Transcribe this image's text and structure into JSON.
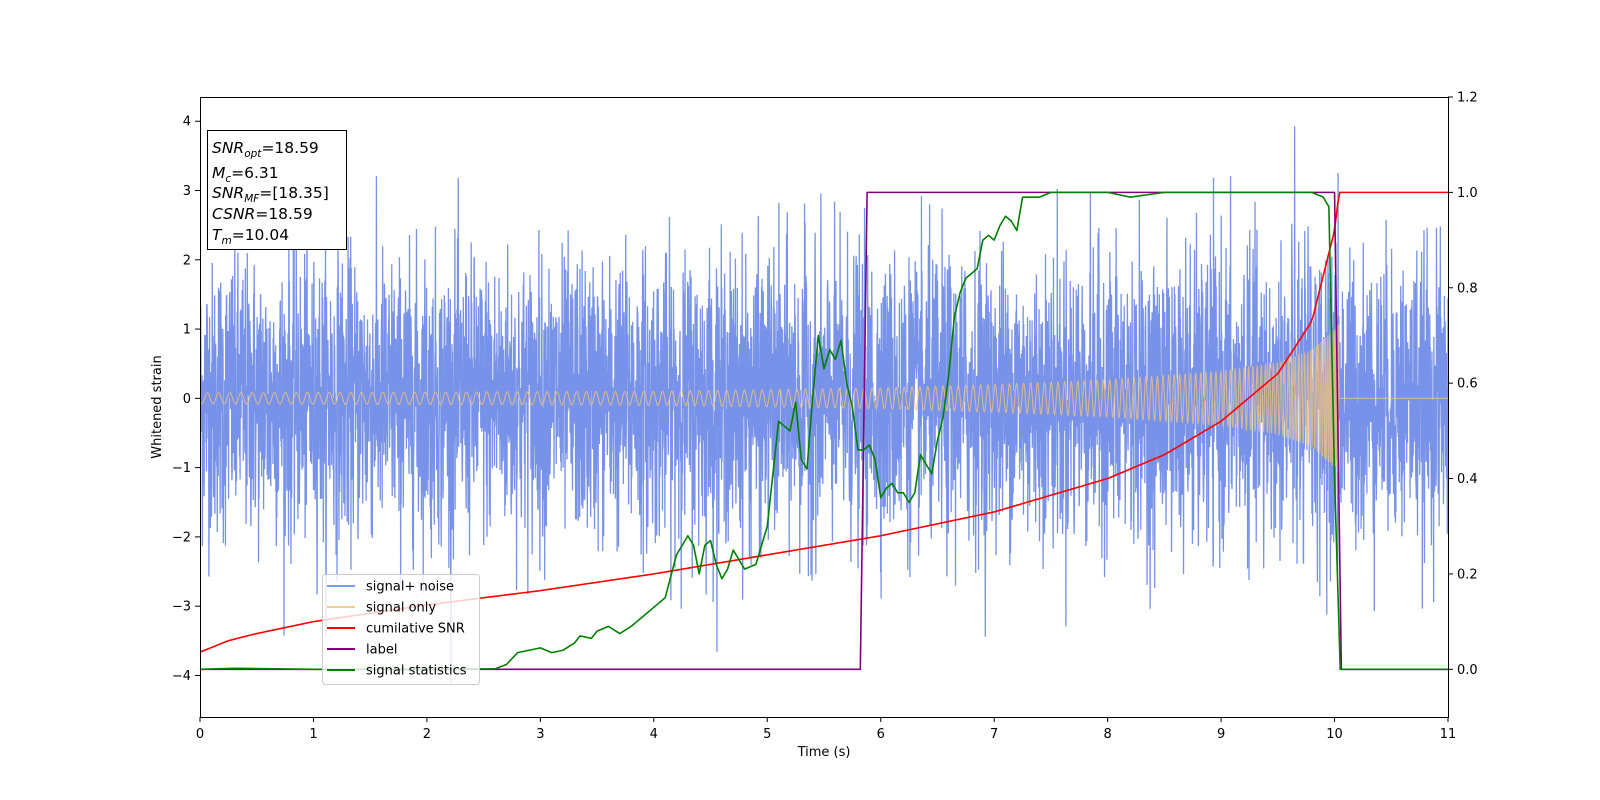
{
  "chart_data": {
    "type": "line",
    "xlabel": "Time (s)",
    "ylabel": "Whitened strain",
    "xlim": [
      0,
      11
    ],
    "ylim": [
      -4.6,
      4.35
    ],
    "y2lim": [
      -0.1,
      1.2
    ],
    "xticks": [
      "0",
      "1",
      "2",
      "3",
      "4",
      "5",
      "6",
      "7",
      "8",
      "9",
      "10",
      "11"
    ],
    "yticks": [
      "4",
      "3",
      "2",
      "1",
      "0",
      "−1",
      "−2",
      "−3",
      "−4"
    ],
    "y2ticks": [
      "1.2",
      "1.0",
      "0.8",
      "0.6",
      "0.4",
      "0.2",
      "0.0"
    ],
    "grid": false,
    "legend_position": "lower-left",
    "annotation": [
      {
        "base": "SNR",
        "sub": "opt",
        "value": "=18.59"
      },
      {
        "base": "M",
        "sub": "c",
        "value": "=6.31"
      },
      {
        "base": "SNR",
        "sub": "MF",
        "value": "=[18.35]"
      },
      {
        "base": "CSNR",
        "sub": "",
        "value": "=18.59"
      },
      {
        "base": "T",
        "sub": "m",
        "value": "=10.04"
      }
    ],
    "series": [
      {
        "name": "signal+ noise",
        "axis": "left",
        "color": "#6b89e6",
        "description": "Gaussian white noise (std ~1, peaks ~3.9) plus chirp signal, 0 to 11 s"
      },
      {
        "name": "signal only",
        "axis": "left",
        "color": "#f5c37a",
        "envelope": {
          "x": [
            0,
            2,
            4,
            6,
            7,
            8,
            9,
            9.5,
            9.8,
            10.0,
            10.04
          ],
          "amplitude": [
            0.08,
            0.09,
            0.1,
            0.15,
            0.2,
            0.27,
            0.39,
            0.52,
            0.7,
            1.0,
            1.1
          ]
        },
        "zero_after": 10.04
      },
      {
        "name": "cumilative SNR",
        "axis": "right",
        "color": "#ff0000",
        "x": [
          0,
          0.25,
          0.5,
          1,
          2,
          3,
          4,
          5,
          6,
          7,
          8,
          8.5,
          9,
          9.5,
          9.8,
          10.0,
          10.04,
          10.1,
          11
        ],
        "y": [
          0.036,
          0.06,
          0.075,
          0.1,
          0.135,
          0.165,
          0.2,
          0.24,
          0.28,
          0.33,
          0.4,
          0.45,
          0.52,
          0.62,
          0.73,
          0.92,
          1.0,
          1.0,
          1.0
        ]
      },
      {
        "name": "label",
        "axis": "right",
        "color": "#800080",
        "x": [
          0,
          5.82,
          5.88,
          10.0,
          10.06,
          11
        ],
        "y": [
          0,
          0,
          1,
          1,
          0,
          0
        ]
      },
      {
        "name": "signal statistics",
        "axis": "right",
        "color": "#008000",
        "x": [
          0,
          0.3,
          1,
          2,
          2.6,
          2.7,
          2.8,
          2.9,
          3.0,
          3.1,
          3.2,
          3.3,
          3.35,
          3.45,
          3.5,
          3.55,
          3.6,
          3.7,
          3.8,
          3.9,
          4.0,
          4.1,
          4.2,
          4.3,
          4.35,
          4.4,
          4.45,
          4.5,
          4.55,
          4.6,
          4.65,
          4.7,
          4.8,
          4.9,
          5.0,
          5.1,
          5.2,
          5.25,
          5.3,
          5.35,
          5.4,
          5.45,
          5.5,
          5.55,
          5.6,
          5.65,
          5.7,
          5.75,
          5.8,
          5.85,
          5.9,
          5.95,
          6.0,
          6.05,
          6.1,
          6.15,
          6.2,
          6.25,
          6.3,
          6.35,
          6.4,
          6.45,
          6.5,
          6.55,
          6.6,
          6.65,
          6.7,
          6.75,
          6.8,
          6.85,
          6.9,
          6.95,
          7.0,
          7.05,
          7.1,
          7.15,
          7.2,
          7.25,
          7.3,
          7.4,
          7.5,
          7.6,
          7.8,
          8.0,
          8.2,
          8.5,
          8.8,
          9.0,
          9.5,
          9.8,
          9.9,
          9.95,
          10.0,
          10.05,
          10.1,
          10.5,
          11
        ],
        "y": [
          0.0,
          0.002,
          0.0,
          0.0,
          0.001,
          0.01,
          0.035,
          0.04,
          0.045,
          0.035,
          0.04,
          0.055,
          0.07,
          0.065,
          0.08,
          0.085,
          0.09,
          0.075,
          0.09,
          0.11,
          0.13,
          0.15,
          0.24,
          0.28,
          0.26,
          0.2,
          0.26,
          0.27,
          0.22,
          0.19,
          0.21,
          0.25,
          0.21,
          0.22,
          0.3,
          0.52,
          0.5,
          0.56,
          0.44,
          0.42,
          0.57,
          0.7,
          0.63,
          0.67,
          0.65,
          0.69,
          0.6,
          0.55,
          0.46,
          0.46,
          0.47,
          0.44,
          0.36,
          0.38,
          0.39,
          0.37,
          0.37,
          0.35,
          0.37,
          0.45,
          0.43,
          0.41,
          0.48,
          0.53,
          0.62,
          0.74,
          0.79,
          0.82,
          0.83,
          0.84,
          0.9,
          0.91,
          0.9,
          0.93,
          0.95,
          0.94,
          0.92,
          0.99,
          0.99,
          0.99,
          1.0,
          1.0,
          1.0,
          1.0,
          0.99,
          1.0,
          1.0,
          1.0,
          1.0,
          1.0,
          0.99,
          0.97,
          0.4,
          0.0,
          0.0,
          0.0,
          0.0
        ]
      }
    ]
  }
}
